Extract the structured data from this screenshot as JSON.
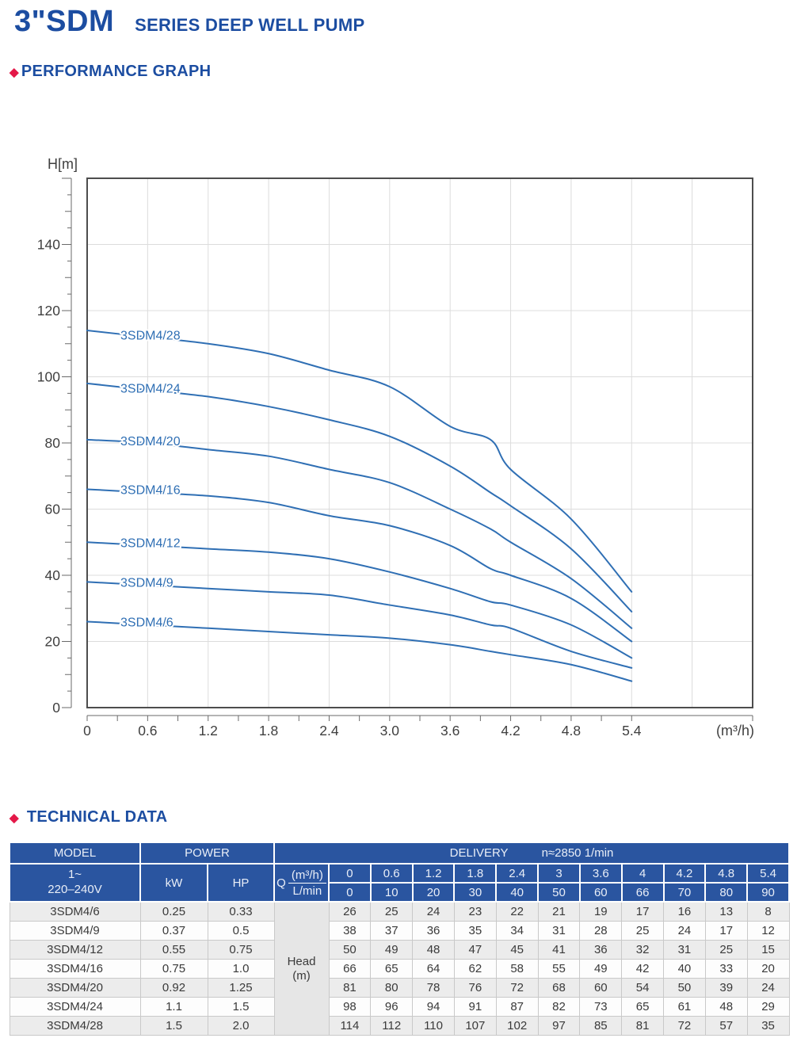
{
  "page": {
    "title": "3\"SDM",
    "subtitle": "SERIES DEEP WELL PUMP",
    "diamond_icon": "◆",
    "performance_heading": "PERFORMANCE GRAPH",
    "technical_heading": "TECHNICAL DATA",
    "colors": {
      "accent_blue": "#1c4da1",
      "accent_red": "#e41848",
      "table_header_bg": "#2a55a0",
      "curve_blue": "#2f6fb4"
    }
  },
  "chart_data": {
    "type": "line",
    "title": "",
    "ylabel": "H[m]",
    "xlabel": "(m³/h)",
    "x": [
      0,
      0.6,
      1.2,
      1.8,
      2.4,
      3,
      3.6,
      4,
      4.2,
      4.8,
      5.4
    ],
    "series": [
      {
        "name": "3SDM4/28",
        "values": [
          114,
          112,
          110,
          107,
          102,
          97,
          85,
          81,
          72,
          57,
          35
        ]
      },
      {
        "name": "3SDM4/24",
        "values": [
          98,
          96,
          94,
          91,
          87,
          82,
          73,
          65,
          61,
          48,
          29
        ]
      },
      {
        "name": "3SDM4/20",
        "values": [
          81,
          80,
          78,
          76,
          72,
          68,
          60,
          54,
          50,
          39,
          24
        ]
      },
      {
        "name": "3SDM4/16",
        "values": [
          66,
          65,
          64,
          62,
          58,
          55,
          49,
          42,
          40,
          33,
          20
        ]
      },
      {
        "name": "3SDM4/12",
        "values": [
          50,
          49,
          48,
          47,
          45,
          41,
          36,
          32,
          31,
          25,
          15
        ]
      },
      {
        "name": "3SDM4/9",
        "values": [
          38,
          37,
          36,
          35,
          34,
          31,
          28,
          25,
          24,
          17,
          12
        ]
      },
      {
        "name": "3SDM4/6",
        "values": [
          26,
          25,
          24,
          23,
          22,
          21,
          19,
          17,
          16,
          13,
          8
        ]
      }
    ],
    "xlim": [
      0,
      6.6
    ],
    "ylim": [
      0,
      160
    ],
    "x_tick_values": [
      0,
      0.6,
      1.2,
      1.8,
      2.4,
      3.0,
      3.6,
      4.2,
      4.8,
      5.4
    ],
    "x_tick_labels": [
      "0",
      "0.6",
      "1.2",
      "1.8",
      "2.4",
      "3.0",
      "3.6",
      "4.2",
      "4.8",
      "5.4"
    ],
    "y_tick_values": [
      0,
      20,
      40,
      60,
      80,
      100,
      120,
      140
    ],
    "grid": true,
    "legend": "inline-curve-labels",
    "line_color": "#2f6fb4"
  },
  "table": {
    "header": {
      "model": "MODEL",
      "power": "POWER",
      "delivery": "DELIVERY",
      "delivery_note": "n≈2850 1/min",
      "voltage_line1": "1~",
      "voltage_line2": "220–240V",
      "kw": "kW",
      "hp": "HP",
      "q_label": "Q",
      "q_unit_top": "(m³/h)",
      "q_unit_bottom": "L/min",
      "q_values": [
        "0",
        "0.6",
        "1.2",
        "1.8",
        "2.4",
        "3",
        "3.6",
        "4",
        "4.2",
        "4.8",
        "5.4"
      ],
      "lmin_values": [
        "0",
        "10",
        "20",
        "30",
        "40",
        "50",
        "60",
        "66",
        "70",
        "80",
        "90"
      ]
    },
    "head_label_line1": "Head",
    "head_label_line2": "(m)",
    "rows": [
      {
        "model": "3SDM4/6",
        "kw": "0.25",
        "hp": "0.33",
        "head": [
          "26",
          "25",
          "24",
          "23",
          "22",
          "21",
          "19",
          "17",
          "16",
          "13",
          "8"
        ]
      },
      {
        "model": "3SDM4/9",
        "kw": "0.37",
        "hp": "0.5",
        "head": [
          "38",
          "37",
          "36",
          "35",
          "34",
          "31",
          "28",
          "25",
          "24",
          "17",
          "12"
        ]
      },
      {
        "model": "3SDM4/12",
        "kw": "0.55",
        "hp": "0.75",
        "head": [
          "50",
          "49",
          "48",
          "47",
          "45",
          "41",
          "36",
          "32",
          "31",
          "25",
          "15"
        ]
      },
      {
        "model": "3SDM4/16",
        "kw": "0.75",
        "hp": "1.0",
        "head": [
          "66",
          "65",
          "64",
          "62",
          "58",
          "55",
          "49",
          "42",
          "40",
          "33",
          "20"
        ]
      },
      {
        "model": "3SDM4/20",
        "kw": "0.92",
        "hp": "1.25",
        "head": [
          "81",
          "80",
          "78",
          "76",
          "72",
          "68",
          "60",
          "54",
          "50",
          "39",
          "24"
        ]
      },
      {
        "model": "3SDM4/24",
        "kw": "1.1",
        "hp": "1.5",
        "head": [
          "98",
          "96",
          "94",
          "91",
          "87",
          "82",
          "73",
          "65",
          "61",
          "48",
          "29"
        ]
      },
      {
        "model": "3SDM4/28",
        "kw": "1.5",
        "hp": "2.0",
        "head": [
          "114",
          "112",
          "110",
          "107",
          "102",
          "97",
          "85",
          "81",
          "72",
          "57",
          "35"
        ]
      }
    ]
  }
}
